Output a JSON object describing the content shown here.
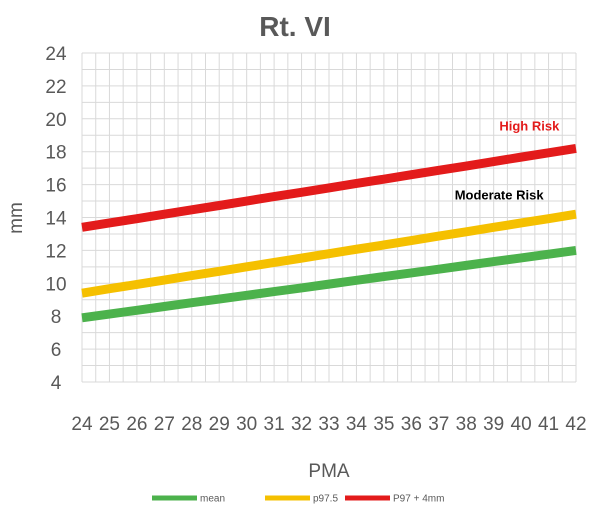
{
  "chart_data": {
    "type": "line",
    "title": "Rt. VI",
    "xlabel": "PMA",
    "ylabel": "mm",
    "x": [
      24,
      25,
      26,
      27,
      28,
      29,
      30,
      31,
      32,
      33,
      34,
      35,
      36,
      37,
      38,
      39,
      40,
      41,
      42
    ],
    "ylim": [
      4,
      24
    ],
    "yticks": [
      4,
      6,
      8,
      10,
      12,
      14,
      16,
      18,
      20,
      22,
      24
    ],
    "xlim": [
      24,
      42
    ],
    "grid": true,
    "legend_position": "bottom",
    "series": [
      {
        "name": "mean",
        "color": "#4cb24c",
        "values": [
          7.9,
          8.13,
          8.36,
          8.59,
          8.82,
          9.04,
          9.27,
          9.5,
          9.72,
          9.95,
          10.18,
          10.41,
          10.63,
          10.86,
          11.09,
          11.32,
          11.54,
          11.77,
          12.0
        ]
      },
      {
        "name": "p97.5",
        "color": "#f5c000",
        "values": [
          9.4,
          9.67,
          9.93,
          10.2,
          10.47,
          10.73,
          11.0,
          11.27,
          11.53,
          11.8,
          12.07,
          12.33,
          12.6,
          12.87,
          13.13,
          13.4,
          13.67,
          13.93,
          14.2
        ]
      },
      {
        "name": "P97 + 4mm",
        "color": "#e31b1b",
        "values": [
          13.4,
          13.67,
          13.93,
          14.2,
          14.47,
          14.73,
          15.0,
          15.27,
          15.53,
          15.8,
          16.07,
          16.33,
          16.6,
          16.87,
          17.13,
          17.4,
          17.67,
          17.93,
          18.2
        ]
      }
    ],
    "annotations": [
      {
        "text": "High Risk",
        "color": "#e31b1b",
        "x": 40.3,
        "y": 19.3
      },
      {
        "text": "Moderate Risk",
        "color": "#000000",
        "x": 39.2,
        "y": 15.1
      }
    ]
  }
}
